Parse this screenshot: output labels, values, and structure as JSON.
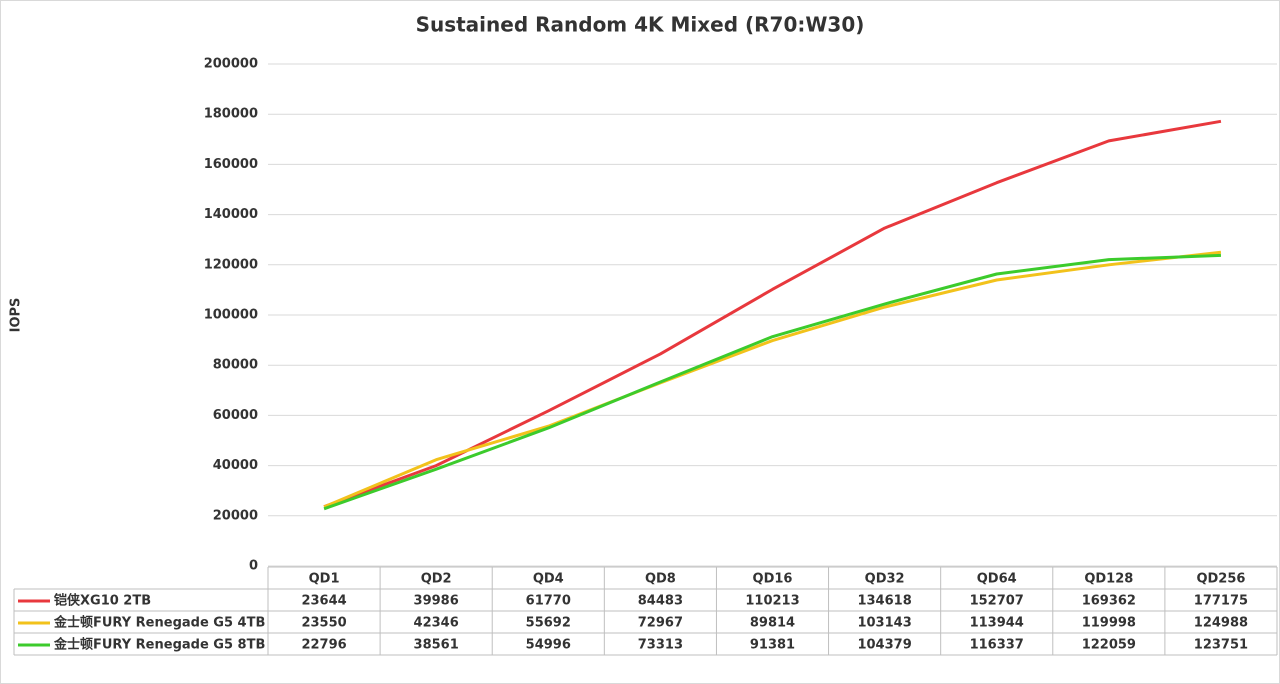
{
  "chart_data": {
    "type": "line",
    "title": "Sustained Random 4K Mixed (R70:W30)",
    "y_label": "IOPS",
    "categories": [
      "QD1",
      "QD2",
      "QD4",
      "QD8",
      "QD16",
      "QD32",
      "QD64",
      "QD128",
      "QD256"
    ],
    "series": [
      {
        "name": "铠侠XG10 2TB",
        "color": "#e8383d",
        "values": [
          23644,
          39986,
          61770,
          84483,
          110213,
          134618,
          152707,
          169362,
          177175
        ]
      },
      {
        "name": "金士顿FURY Renegade G5 4TB",
        "color": "#f2c21b",
        "values": [
          23550,
          42346,
          55692,
          72967,
          89814,
          103143,
          113944,
          119998,
          124988
        ]
      },
      {
        "name": "金士顿FURY Renegade G5 8TB",
        "color": "#3ccb2c",
        "values": [
          22796,
          38561,
          54996,
          73313,
          91381,
          104379,
          116337,
          122059,
          123751
        ]
      }
    ],
    "ylim": [
      0,
      200000
    ],
    "yticks": [
      0,
      20000,
      40000,
      60000,
      80000,
      100000,
      120000,
      140000,
      160000,
      180000,
      200000
    ],
    "grid": true
  }
}
